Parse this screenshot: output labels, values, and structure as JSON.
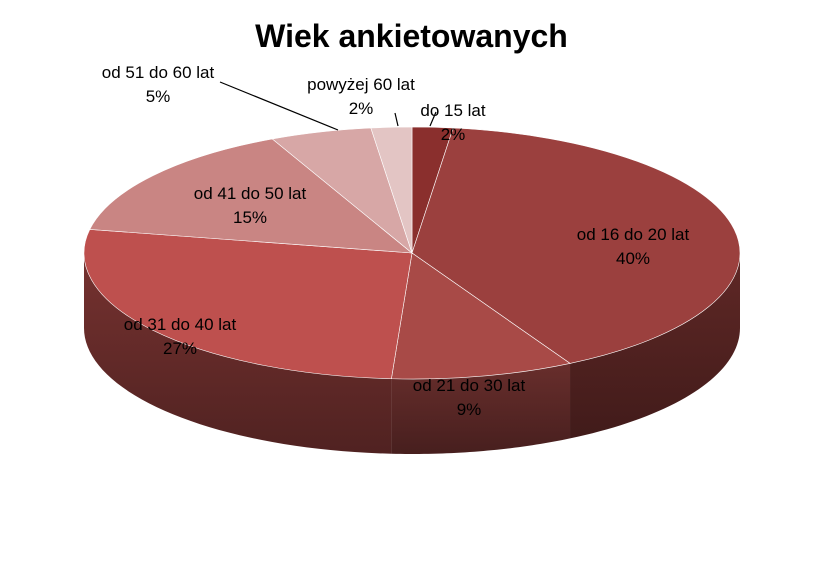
{
  "chart_data": {
    "type": "pie",
    "title": "Wiek ankietowanych",
    "slices": [
      {
        "label": "do 15 lat",
        "value": 2,
        "value_label": "2%",
        "color": "#8a2f2d"
      },
      {
        "label": "od 16 do 20 lat",
        "value": 40,
        "value_label": "40%",
        "color": "#9b403e"
      },
      {
        "label": "od 21 do 30 lat",
        "value": 9,
        "value_label": "9%",
        "color": "#a84a47"
      },
      {
        "label": "od 31 do 40 lat",
        "value": 27,
        "value_label": "27%",
        "color": "#be504e"
      },
      {
        "label": "od 41 do 50 lat",
        "value": 15,
        "value_label": "15%",
        "color": "#c98583"
      },
      {
        "label": "od 51 do 60 lat",
        "value": 5,
        "value_label": "5%",
        "color": "#d7a7a6"
      },
      {
        "label": "powyżej 60 lat",
        "value": 2,
        "value_label": "2%",
        "color": "#e3c5c4"
      }
    ]
  }
}
